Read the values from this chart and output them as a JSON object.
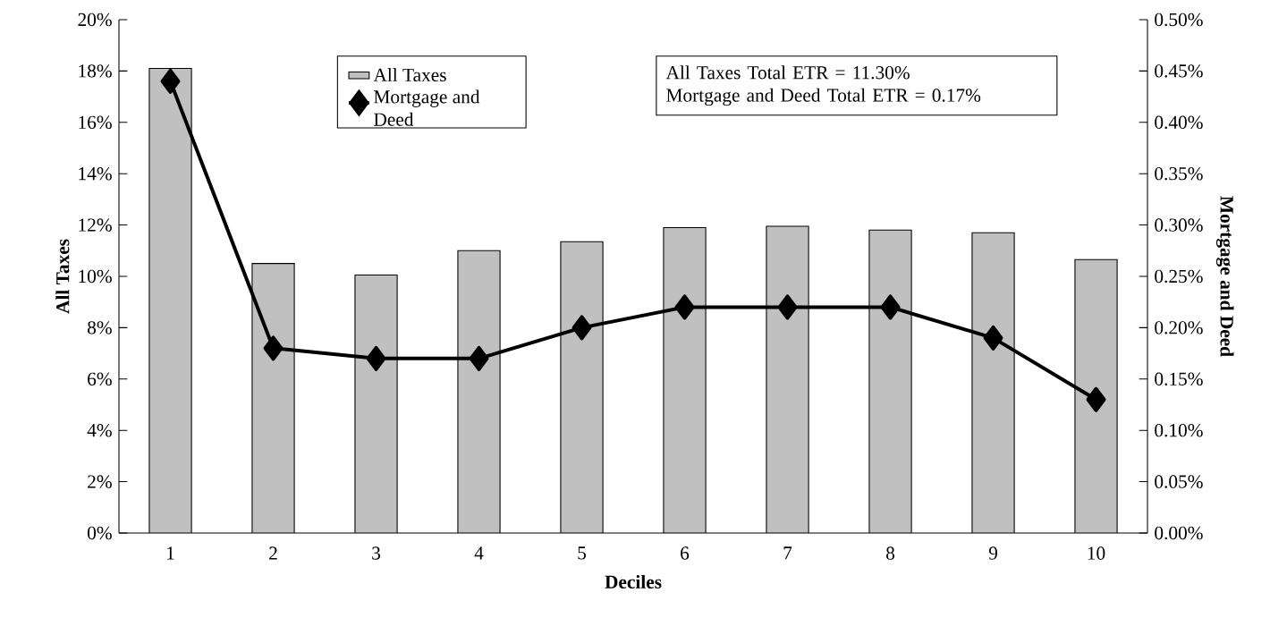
{
  "chart_data": {
    "type": "bar",
    "xlabel": "Deciles",
    "ylabel": "All Taxes",
    "y2label": "Mortgage and Deed",
    "categories": [
      "1",
      "2",
      "3",
      "4",
      "5",
      "6",
      "7",
      "8",
      "9",
      "10"
    ],
    "series": [
      {
        "name": "All Taxes",
        "color": "#c0c0c0",
        "values": [
          18.1,
          10.5,
          10.05,
          11.0,
          11.35,
          11.9,
          11.95,
          11.8,
          11.7,
          10.65
        ]
      },
      {
        "name": "Mortgage and Deed",
        "type": "line",
        "axis": "y2",
        "color": "#000000",
        "marker": "diamond",
        "values": [
          0.44,
          0.18,
          0.17,
          0.17,
          0.2,
          0.22,
          0.22,
          0.22,
          0.19,
          0.13
        ]
      }
    ],
    "ylim": [
      0,
      20
    ],
    "yticks": [
      {
        "value": 0,
        "label": "0%"
      },
      {
        "value": 2,
        "label": "2%"
      },
      {
        "value": 4,
        "label": "4%"
      },
      {
        "value": 6,
        "label": "6%"
      },
      {
        "value": 8,
        "label": "8%"
      },
      {
        "value": 10,
        "label": "10%"
      },
      {
        "value": 12,
        "label": "12%"
      },
      {
        "value": 14,
        "label": "14%"
      },
      {
        "value": 16,
        "label": "16%"
      },
      {
        "value": 18,
        "label": "18%"
      },
      {
        "value": 20,
        "label": "20%"
      }
    ],
    "y2lim": [
      0,
      0.5
    ],
    "y2ticks": [
      {
        "value": 0,
        "label": "0.00%"
      },
      {
        "value": 0.05,
        "label": "0.05%"
      },
      {
        "value": 0.1,
        "label": "0.10%"
      },
      {
        "value": 0.15,
        "label": "0.15%"
      },
      {
        "value": 0.2,
        "label": "0.20%"
      },
      {
        "value": 0.25,
        "label": "0.25%"
      },
      {
        "value": 0.3,
        "label": "0.30%"
      },
      {
        "value": 0.35,
        "label": "0.35%"
      },
      {
        "value": 0.4,
        "label": "0.40%"
      },
      {
        "value": 0.45,
        "label": "0.45%"
      },
      {
        "value": 0.5,
        "label": "0.50%"
      }
    ],
    "annotations": [
      "All Taxes Total ETR = 11.30%",
      "Mortgage and Deed Total ETR = 0.17%"
    ],
    "legend": "top",
    "grid": false
  }
}
